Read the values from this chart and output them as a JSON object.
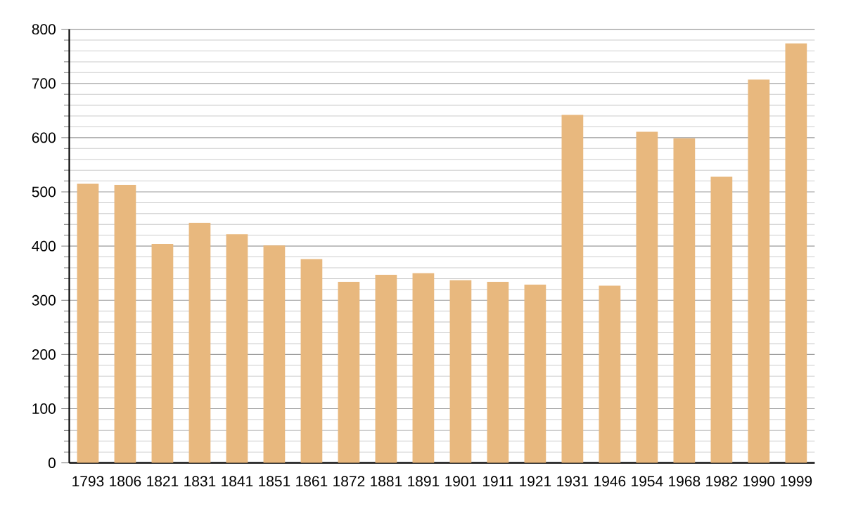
{
  "chart_data": {
    "type": "bar",
    "categories": [
      "1793",
      "1806",
      "1821",
      "1831",
      "1841",
      "1851",
      "1861",
      "1872",
      "1881",
      "1891",
      "1901",
      "1911",
      "1921",
      "1931",
      "1946",
      "1954",
      "1968",
      "1982",
      "1990",
      "1999"
    ],
    "values": [
      515,
      513,
      404,
      443,
      422,
      401,
      376,
      334,
      347,
      350,
      337,
      334,
      329,
      642,
      327,
      611,
      599,
      528,
      707,
      774
    ],
    "color": "#e8b87e",
    "ylim": [
      0,
      800
    ],
    "yticks": [
      0,
      100,
      200,
      300,
      400,
      500,
      600,
      700,
      800
    ],
    "grid": "y"
  }
}
